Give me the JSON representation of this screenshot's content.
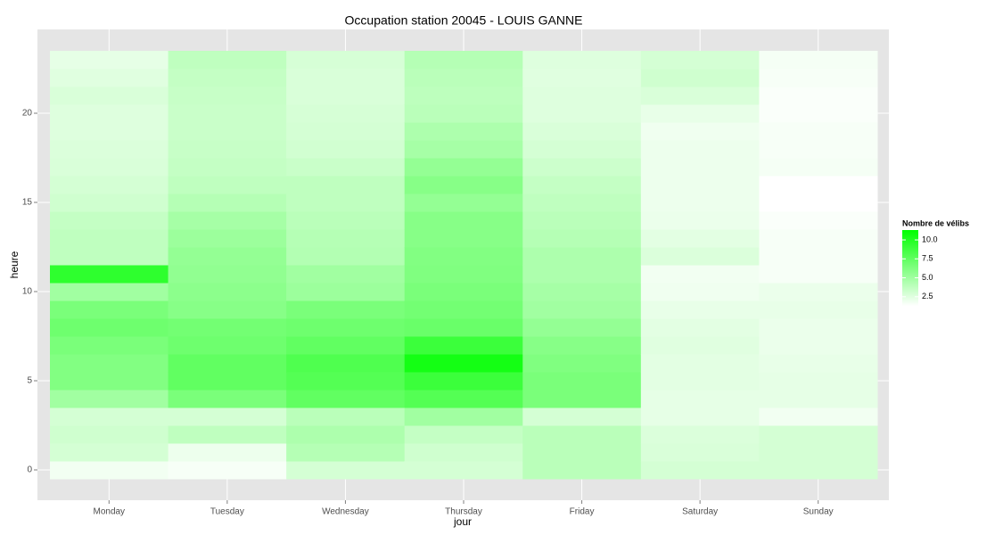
{
  "chart_data": {
    "type": "heatmap",
    "title": "Occupation station 20045 - LOUIS GANNE",
    "x_label": "jour",
    "y_label": "heure",
    "categories": [
      "Monday",
      "Tuesday",
      "Wednesday",
      "Thursday",
      "Friday",
      "Saturday",
      "Sunday"
    ],
    "y": [
      0,
      1,
      2,
      3,
      4,
      5,
      6,
      7,
      8,
      9,
      10,
      11,
      12,
      13,
      14,
      15,
      16,
      17,
      18,
      19,
      20,
      21,
      22,
      23
    ],
    "values": [
      [
        1.8,
        3.0,
        3.2,
        3.0,
        5.0,
        6.2,
        6.2,
        6.5,
        7.0,
        6.5,
        5.0,
        9.5,
        3.8,
        3.8,
        3.6,
        3.2,
        3.0,
        2.8,
        2.7,
        2.6,
        2.6,
        2.8,
        2.5,
        2.3
      ],
      [
        1.6,
        2.0,
        3.8,
        3.0,
        6.5,
        7.5,
        7.5,
        7.0,
        6.8,
        6.0,
        5.8,
        5.6,
        5.5,
        5.2,
        4.8,
        4.2,
        3.8,
        3.6,
        3.5,
        3.4,
        3.4,
        3.5,
        3.6,
        3.8
      ],
      [
        3.0,
        4.2,
        4.5,
        4.0,
        7.5,
        8.0,
        8.2,
        7.5,
        7.0,
        6.5,
        5.2,
        5.0,
        4.3,
        4.2,
        4.0,
        3.8,
        3.8,
        3.4,
        3.1,
        3.0,
        2.9,
        2.8,
        2.8,
        2.9
      ],
      [
        3.0,
        3.2,
        3.6,
        5.0,
        8.0,
        9.0,
        10.5,
        9.0,
        7.2,
        6.8,
        6.5,
        6.3,
        6.2,
        6.0,
        6.0,
        5.5,
        6.0,
        5.5,
        4.8,
        4.5,
        4.0,
        3.9,
        4.0,
        4.2
      ],
      [
        4.0,
        4.0,
        4.0,
        3.0,
        6.5,
        6.5,
        6.3,
        6.0,
        5.5,
        5.0,
        4.8,
        4.5,
        4.5,
        4.2,
        4.0,
        3.8,
        3.6,
        3.3,
        3.0,
        2.8,
        2.6,
        2.6,
        2.5,
        2.6
      ],
      [
        3.0,
        2.8,
        2.7,
        2.3,
        2.3,
        2.4,
        2.4,
        2.5,
        2.4,
        2.2,
        1.9,
        1.8,
        2.7,
        2.4,
        2.1,
        2.0,
        2.0,
        2.0,
        2.0,
        1.9,
        2.2,
        2.8,
        3.2,
        3.0
      ],
      [
        3.0,
        3.0,
        3.0,
        1.8,
        2.3,
        2.3,
        2.2,
        2.1,
        2.1,
        2.2,
        2.1,
        1.6,
        1.6,
        1.6,
        1.5,
        1.3,
        1.3,
        1.7,
        1.6,
        1.6,
        1.5,
        1.5,
        1.6,
        1.7
      ]
    ],
    "ylim": [
      -0.5,
      23.5
    ],
    "yticks": [
      0,
      5,
      10,
      15,
      20
    ],
    "grid": true,
    "legend_title": "Nombre de vélibs",
    "color_low": "#ffffff",
    "color_high": "#00ff00",
    "zlim": [
      1.3,
      11.3
    ],
    "zticks": [
      2.5,
      {
        "value": 5,
        "label": "5.0"
      },
      7.5,
      {
        "value": 10,
        "label": "10.0"
      }
    ]
  }
}
